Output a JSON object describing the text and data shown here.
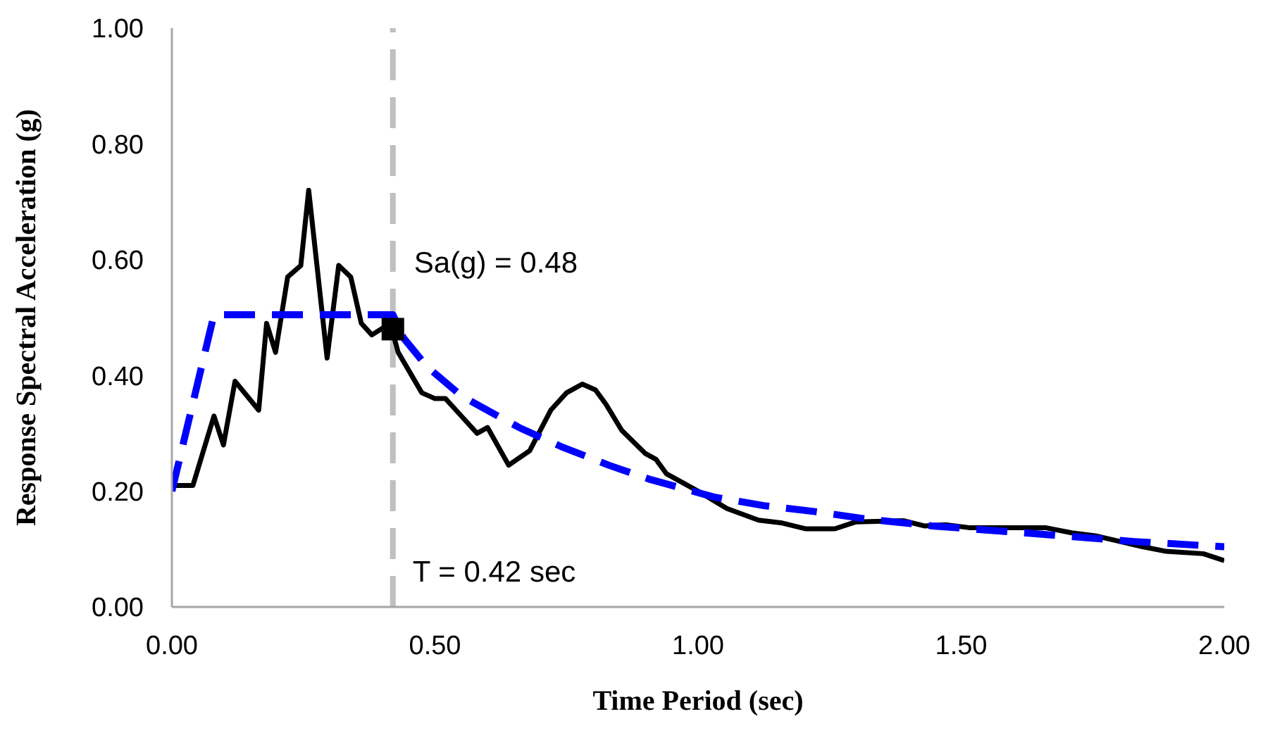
{
  "chart_data": {
    "type": "line",
    "xlabel": "Time Period (sec)",
    "ylabel": "Response Spectral Acceleration (g)",
    "xlim": [
      0,
      2
    ],
    "ylim": [
      0,
      1
    ],
    "xticks": [
      {
        "value": 0,
        "label": "0.00"
      },
      {
        "value": 0.5,
        "label": "0.50"
      },
      {
        "value": 1,
        "label": "1.00"
      },
      {
        "value": 1.5,
        "label": "1.50"
      },
      {
        "value": 2,
        "label": "2.00"
      }
    ],
    "yticks": [
      {
        "value": 0,
        "label": "0.00"
      },
      {
        "value": 0.2,
        "label": "0.20"
      },
      {
        "value": 0.4,
        "label": "0.40"
      },
      {
        "value": 0.6,
        "label": "0.60"
      },
      {
        "value": 0.8,
        "label": "0.80"
      },
      {
        "value": 1,
        "label": "1.00"
      }
    ],
    "grid": false,
    "series": [
      {
        "color": "#000000",
        "line_style": "solid",
        "marker": "none",
        "x": [
          0,
          0.04,
          0.08,
          0.098,
          0.12,
          0.165,
          0.18,
          0.197,
          0.22,
          0.245,
          0.26,
          0.295,
          0.317,
          0.34,
          0.36,
          0.38,
          0.415,
          0.43,
          0.475,
          0.5,
          0.52,
          0.55,
          0.58,
          0.6,
          0.64,
          0.68,
          0.72,
          0.75,
          0.78,
          0.805,
          0.825,
          0.855,
          0.9,
          0.92,
          0.94,
          1.0,
          1.055,
          1.115,
          1.16,
          1.205,
          1.26,
          1.3,
          1.39,
          1.43,
          1.47,
          1.515,
          1.66,
          1.71,
          1.755,
          1.845,
          1.89,
          1.96,
          2.0
        ],
        "values": [
          0.21,
          0.21,
          0.33,
          0.28,
          0.39,
          0.34,
          0.49,
          0.44,
          0.57,
          0.59,
          0.72,
          0.43,
          0.59,
          0.57,
          0.49,
          0.47,
          0.49,
          0.44,
          0.37,
          0.36,
          0.36,
          0.33,
          0.3,
          0.31,
          0.245,
          0.27,
          0.34,
          0.37,
          0.385,
          0.375,
          0.35,
          0.305,
          0.265,
          0.255,
          0.23,
          0.2,
          0.17,
          0.15,
          0.145,
          0.135,
          0.135,
          0.147,
          0.149,
          0.14,
          0.142,
          0.137,
          0.137,
          0.128,
          0.123,
          0.104,
          0.096,
          0.092,
          0.08
        ]
      },
      {
        "color": "#0000ff",
        "line_style": "dashed",
        "marker": "none",
        "x": [
          0,
          0.08,
          0.42,
          0.44,
          0.485,
          0.55,
          0.605,
          0.66,
          0.74,
          0.83,
          0.91,
          1.03,
          1.125,
          1.22,
          1.32,
          1.445,
          1.62,
          1.83,
          2.0
        ],
        "values": [
          0.2,
          0.505,
          0.505,
          0.465,
          0.415,
          0.365,
          0.337,
          0.31,
          0.277,
          0.245,
          0.22,
          0.19,
          0.175,
          0.165,
          0.152,
          0.14,
          0.128,
          0.113,
          0.104
        ]
      },
      {
        "type": "scatter",
        "color": "#000000",
        "marker": "square",
        "x": [
          0.42
        ],
        "values": [
          0.48
        ]
      }
    ],
    "ref_lines": [
      {
        "axis": "x",
        "value": 0.42,
        "label": "T = 0.42 sec",
        "color": "#bfbfbf",
        "line_style": "dashed"
      }
    ],
    "annotations": [
      {
        "text": "Sa(g) = 0.48",
        "x": 0.42,
        "y": 0.48
      }
    ]
  }
}
